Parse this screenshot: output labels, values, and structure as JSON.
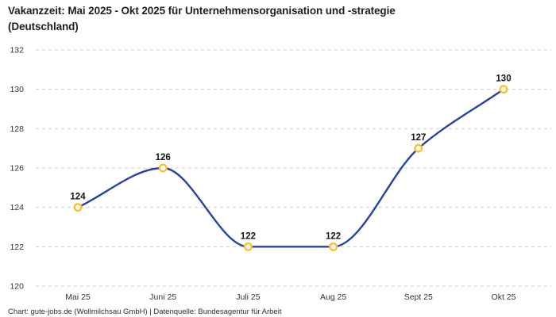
{
  "title": {
    "line1": "Vakanzzeit: Mai 2025 - Okt 2025 für Unternehmensorganisation und -strategie",
    "line2": "(Deutschland)"
  },
  "footer": {
    "attribution": "Chart: gute-jobs.de (Wollmilchsau GmbH) | Datenquelle: Bundesagentur für Arbeit"
  },
  "colors": {
    "line": "#2443a5",
    "marker_ring": "#fcc22e",
    "marker_fill": "#ffffff",
    "grid": "#cccccc",
    "axis_text": "#333333",
    "point_label_text": "#141414"
  },
  "chart_data": {
    "type": "line",
    "title": "Vakanzzeit: Mai 2025 - Okt 2025 für Unternehmensorganisation und -strategie (Deutschland)",
    "categories": [
      "Mai 25",
      "Juni 25",
      "Juli 25",
      "Aug 25",
      "Sept 25",
      "Okt 25"
    ],
    "values": [
      124,
      126,
      122,
      122,
      127,
      130
    ],
    "point_labels": [
      "124",
      "126",
      "122",
      "122",
      "127",
      "130"
    ],
    "xlabel": "",
    "ylabel": "",
    "ylim": [
      120,
      132
    ],
    "yticks": [
      120,
      122,
      124,
      126,
      128,
      130,
      132
    ],
    "grid": "horizontal-dashed",
    "legend": "none",
    "line_style": "smooth-monotone"
  }
}
